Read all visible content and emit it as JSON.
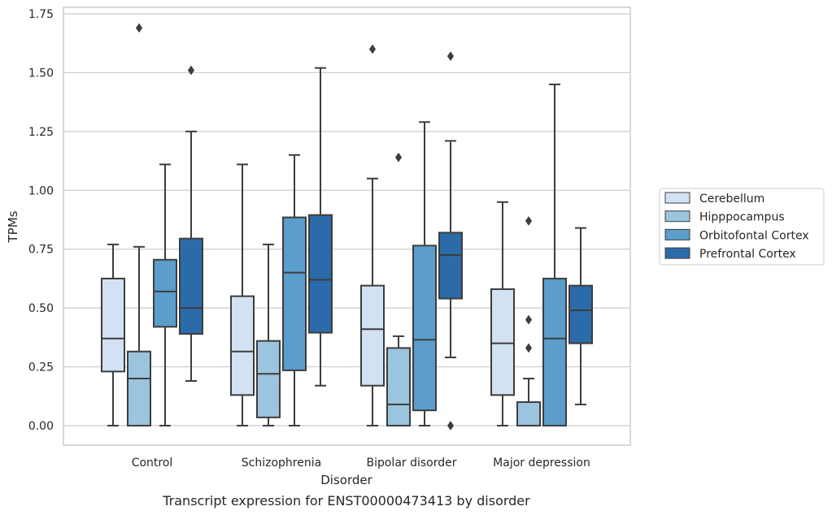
{
  "chart_data": {
    "type": "boxplot",
    "caption": "Transcript expression for ENST00000473413 by disorder",
    "xlabel": "Disorder",
    "ylabel": "TPMs",
    "ylim": [
      -0.08,
      1.78
    ],
    "yticks": [
      "0.00",
      "0.25",
      "0.50",
      "0.75",
      "1.00",
      "1.25",
      "1.50",
      "1.75"
    ],
    "ytick_values": [
      0,
      0.25,
      0.5,
      0.75,
      1.0,
      1.25,
      1.5,
      1.75
    ],
    "grid": "horizontal",
    "legend_position": "right",
    "categories": [
      "Control",
      "Schizophrenia",
      "Bipolar disorder",
      "Major depression"
    ],
    "series": [
      {
        "name": "Cerebellum",
        "color": "#d2e2f2",
        "boxes": [
          {
            "min": 0.0,
            "q1": 0.23,
            "median": 0.37,
            "q3": 0.625,
            "max": 0.77,
            "outliers": []
          },
          {
            "min": 0.0,
            "q1": 0.13,
            "median": 0.315,
            "q3": 0.55,
            "max": 1.11,
            "outliers": []
          },
          {
            "min": 0.0,
            "q1": 0.17,
            "median": 0.41,
            "q3": 0.595,
            "max": 1.05,
            "outliers": [
              1.6
            ]
          },
          {
            "min": 0.0,
            "q1": 0.13,
            "median": 0.35,
            "q3": 0.58,
            "max": 0.95,
            "outliers": []
          }
        ]
      },
      {
        "name": "Hipppocampus",
        "color": "#9bc4df",
        "boxes": [
          {
            "min": 0.0,
            "q1": 0.0,
            "median": 0.2,
            "q3": 0.315,
            "max": 0.76,
            "outliers": [
              1.69
            ]
          },
          {
            "min": 0.0,
            "q1": 0.035,
            "median": 0.22,
            "q3": 0.36,
            "max": 0.77,
            "outliers": []
          },
          {
            "min": 0.0,
            "q1": 0.0,
            "median": 0.09,
            "q3": 0.33,
            "max": 0.38,
            "outliers": [
              1.14
            ]
          },
          {
            "min": 0.0,
            "q1": 0.0,
            "median": 0.0,
            "q3": 0.1,
            "max": 0.2,
            "outliers": [
              0.33,
              0.45,
              0.87
            ]
          }
        ]
      },
      {
        "name": "Orbitofontal Cortex",
        "color": "#5b9dcb",
        "boxes": [
          {
            "min": 0.0,
            "q1": 0.42,
            "median": 0.57,
            "q3": 0.705,
            "max": 1.11,
            "outliers": []
          },
          {
            "min": 0.0,
            "q1": 0.235,
            "median": 0.65,
            "q3": 0.885,
            "max": 1.15,
            "outliers": []
          },
          {
            "min": 0.0,
            "q1": 0.065,
            "median": 0.365,
            "q3": 0.765,
            "max": 1.29,
            "outliers": []
          },
          {
            "min": 0.0,
            "q1": 0.0,
            "median": 0.37,
            "q3": 0.625,
            "max": 1.45,
            "outliers": []
          }
        ]
      },
      {
        "name": "Prefrontal Cortex",
        "color": "#2c6ba9",
        "boxes": [
          {
            "min": 0.19,
            "q1": 0.39,
            "median": 0.5,
            "q3": 0.795,
            "max": 1.25,
            "outliers": [
              1.51
            ]
          },
          {
            "min": 0.17,
            "q1": 0.395,
            "median": 0.62,
            "q3": 0.895,
            "max": 1.52,
            "outliers": []
          },
          {
            "min": 0.29,
            "q1": 0.54,
            "median": 0.725,
            "q3": 0.82,
            "max": 1.21,
            "outliers": [
              0.0,
              1.57
            ]
          },
          {
            "min": 0.09,
            "q1": 0.35,
            "median": 0.49,
            "q3": 0.595,
            "max": 0.84,
            "outliers": []
          }
        ]
      }
    ]
  }
}
